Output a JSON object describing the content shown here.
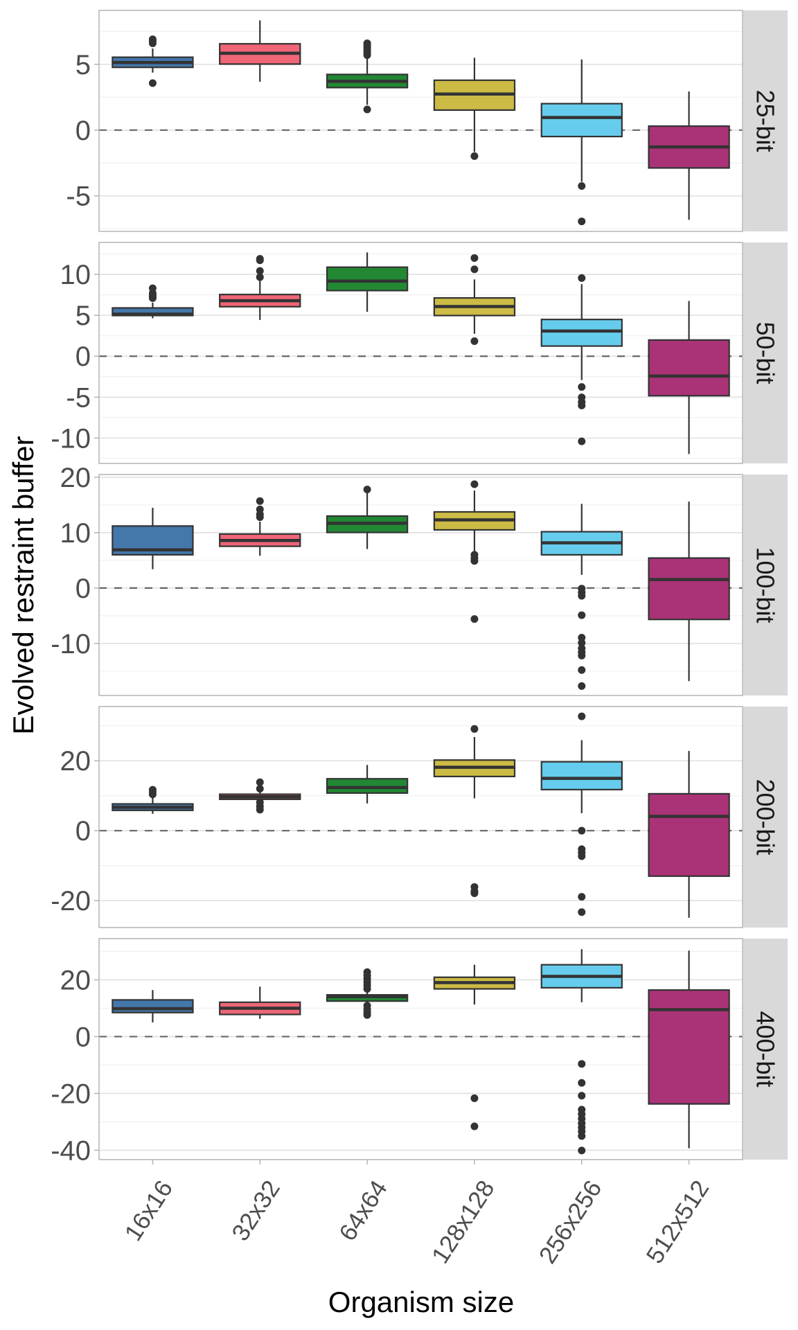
{
  "chart_data": {
    "type": "boxplot",
    "xlabel": "Organism size",
    "ylabel": "Evolved restraint buffer",
    "categories": [
      "16x16",
      "32x32",
      "64x64",
      "128x128",
      "256x256",
      "512x512"
    ],
    "colors": [
      "#4477AA",
      "#EE6677",
      "#228833",
      "#CCBB44",
      "#66CCEE",
      "#AA3377"
    ],
    "reference_line": {
      "y": 0,
      "style": "dashed",
      "color": "#666666"
    },
    "grid": true,
    "facets": [
      {
        "label": "25-bit",
        "ylim": [
          -7.7,
          9.1
        ],
        "yticks": [
          -5,
          0,
          5
        ],
        "yticklabels": [
          "-5",
          "0",
          "5"
        ],
        "minor_yticks": [
          -7.5,
          -2.5,
          2.5,
          7.5
        ],
        "boxes": [
          {
            "q1": 4.77,
            "median": 5.14,
            "q3": 5.54,
            "whisker_low": 4.37,
            "whisker_high": 6.2,
            "outliers": [
              6.6,
              6.75,
              6.9,
              3.57
            ]
          },
          {
            "q1": 5.02,
            "median": 5.84,
            "q3": 6.56,
            "whisker_low": 3.67,
            "whisker_high": 8.34,
            "outliers": []
          },
          {
            "q1": 3.23,
            "median": 3.71,
            "q3": 4.23,
            "whisker_low": 1.92,
            "whisker_high": 5.5,
            "outliers": [
              5.7,
              5.9,
              6.1,
              6.3,
              6.45,
              6.6,
              1.57
            ]
          },
          {
            "q1": 1.52,
            "median": 2.74,
            "q3": 3.79,
            "whisker_low": -1.66,
            "whisker_high": 5.5,
            "outliers": [
              -1.98
            ]
          },
          {
            "q1": -0.49,
            "median": 0.96,
            "q3": 2.01,
            "whisker_low": -3.93,
            "whisker_high": 5.37,
            "outliers": [
              -4.25,
              -6.94
            ]
          },
          {
            "q1": -2.88,
            "median": -1.28,
            "q3": 0.3,
            "whisker_low": -6.82,
            "whisker_high": 2.94,
            "outliers": []
          }
        ]
      },
      {
        "label": "50-bit",
        "ylim": [
          -13.1,
          13.9
        ],
        "yticks": [
          -10,
          -5,
          0,
          5,
          10
        ],
        "yticklabels": [
          "-10",
          "-5",
          "0",
          "5",
          "10"
        ],
        "minor_yticks": [
          -12.5,
          -7.5,
          -2.5,
          2.5,
          7.5,
          12.5
        ],
        "boxes": [
          {
            "q1": 4.97,
            "median": 5.14,
            "q3": 5.9,
            "whisker_low": 4.63,
            "whisker_high": 6.55,
            "outliers": [
              7.1,
              7.3,
              7.5,
              7.7,
              8.3
            ]
          },
          {
            "q1": 6.05,
            "median": 6.78,
            "q3": 7.54,
            "whisker_low": 4.43,
            "whisker_high": 9.24,
            "outliers": [
              9.66,
              10.42,
              11.72,
              11.9
            ]
          },
          {
            "q1": 8.02,
            "median": 9.18,
            "q3": 10.88,
            "whisker_low": 5.42,
            "whisker_high": 12.68,
            "outliers": []
          },
          {
            "q1": 4.97,
            "median": 6.07,
            "q3": 7.12,
            "whisker_low": 2.74,
            "whisker_high": 9.38,
            "outliers": [
              10.62,
              12.0,
              1.84
            ]
          },
          {
            "q1": 1.24,
            "median": 3.08,
            "q3": 4.49,
            "whisker_low": -2.91,
            "whisker_high": 8.81,
            "outliers": [
              9.55,
              -3.76,
              -5.03,
              -5.6,
              -6.02,
              -10.4
            ]
          },
          {
            "q1": -4.83,
            "median": -2.43,
            "q3": 1.98,
            "whisker_low": -11.95,
            "whisker_high": 6.75,
            "outliers": []
          }
        ]
      },
      {
        "label": "100-bit",
        "ylim": [
          -19.4,
          20.5
        ],
        "yticks": [
          -10,
          0,
          10,
          20
        ],
        "yticklabels": [
          "-10",
          "0",
          "10",
          "20"
        ],
        "minor_yticks": [
          -15,
          -5,
          5,
          15
        ],
        "boxes": [
          {
            "q1": 6.0,
            "median": 6.9,
            "q3": 11.2,
            "whisker_low": 3.4,
            "whisker_high": 14.5,
            "outliers": []
          },
          {
            "q1": 7.54,
            "median": 8.58,
            "q3": 9.75,
            "whisker_low": 5.83,
            "whisker_high": 12.0,
            "outliers": [
              12.8,
              13.3,
              14.2,
              15.7
            ]
          },
          {
            "q1": 10.04,
            "median": 11.7,
            "q3": 13.0,
            "whisker_low": 7.04,
            "whisker_high": 17.2,
            "outliers": [
              17.8
            ]
          },
          {
            "q1": 10.5,
            "median": 12.3,
            "q3": 13.75,
            "whisker_low": 6.54,
            "whisker_high": 17.6,
            "outliers": [
              18.75,
              6.0,
              5.4,
              4.9,
              -5.6
            ]
          },
          {
            "q1": 6.0,
            "median": 8.17,
            "q3": 10.17,
            "whisker_low": 2.38,
            "whisker_high": 15.2,
            "outliers": [
              -0.1,
              -0.8,
              -1.4,
              -4.9,
              -8.96,
              -9.9,
              -10.9,
              -11.6,
              -12.2,
              -14.8,
              -17.7
            ]
          },
          {
            "q1": -5.67,
            "median": 1.54,
            "q3": 5.42,
            "whisker_low": -16.8,
            "whisker_high": 15.6,
            "outliers": []
          }
        ]
      },
      {
        "label": "200-bit",
        "ylim": [
          -27.7,
          35.5
        ],
        "yticks": [
          -20,
          0,
          20
        ],
        "yticklabels": [
          "-20",
          "0",
          "20"
        ],
        "minor_yticks": [
          -10,
          10,
          30
        ],
        "boxes": [
          {
            "q1": 5.81,
            "median": 6.7,
            "q3": 7.66,
            "whisker_low": 4.82,
            "whisker_high": 9.44,
            "outliers": [
              10.4,
              11.0,
              11.7
            ]
          },
          {
            "q1": 8.98,
            "median": 9.7,
            "q3": 10.43,
            "whisker_low": 8.6,
            "whisker_high": 11.0,
            "outliers": [
              12.0,
              13.86,
              8.1,
              7.0,
              6.0
            ]
          },
          {
            "q1": 10.76,
            "median": 12.34,
            "q3": 14.85,
            "whisker_low": 7.79,
            "whisker_high": 18.8,
            "outliers": []
          },
          {
            "q1": 15.5,
            "median": 18.15,
            "q3": 20.2,
            "whisker_low": 9.24,
            "whisker_high": 26.8,
            "outliers": [
              29.1,
              -16.1,
              -17.3,
              -17.9
            ]
          },
          {
            "q1": 11.75,
            "median": 14.98,
            "q3": 19.7,
            "whisker_low": 5.0,
            "whisker_high": 25.9,
            "outliers": [
              32.7,
              0.0,
              -5.3,
              -6.3,
              -7.3,
              -18.9,
              -23.3
            ]
          },
          {
            "q1": -13.0,
            "median": 4.1,
            "q3": 10.56,
            "whisker_low": -24.9,
            "whisker_high": 22.8,
            "outliers": []
          }
        ]
      },
      {
        "label": "400-bit",
        "ylim": [
          -43.3,
          34.5
        ],
        "yticks": [
          -40,
          -20,
          0,
          20
        ],
        "yticklabels": [
          "-40",
          "-20",
          "0",
          "20"
        ],
        "minor_yticks": [
          -30,
          -10,
          10,
          30
        ],
        "boxes": [
          {
            "q1": 8.46,
            "median": 9.84,
            "q3": 12.93,
            "whisker_low": 5.0,
            "whisker_high": 16.4,
            "outliers": []
          },
          {
            "q1": 7.8,
            "median": 10.0,
            "q3": 12.1,
            "whisker_low": 6.26,
            "whisker_high": 17.6,
            "outliers": []
          },
          {
            "q1": 12.5,
            "median": 14.1,
            "q3": 14.7,
            "whisker_low": 11.3,
            "whisker_high": 16.3,
            "outliers": [
              16.8,
              18.0,
              19.2,
              20.4,
              21.5,
              22.7,
              10.9,
              9.6,
              8.5,
              7.6
            ]
          },
          {
            "q1": 16.8,
            "median": 19.0,
            "q3": 20.9,
            "whisker_low": 11.3,
            "whisker_high": 25.3,
            "outliers": [
              -21.7,
              -31.6
            ]
          },
          {
            "q1": 17.2,
            "median": 21.2,
            "q3": 25.3,
            "whisker_low": 12.1,
            "whisker_high": 30.8,
            "outliers": [
              -9.6,
              -16.3,
              -20.8,
              -25.7,
              -27.3,
              -28.9,
              -30.5,
              -32.0,
              -33.4,
              -35.0,
              -40.1
            ]
          },
          {
            "q1": -23.7,
            "median": 9.5,
            "q3": 16.4,
            "whisker_low": -39.3,
            "whisker_high": 30.3,
            "outliers": []
          }
        ]
      }
    ]
  }
}
